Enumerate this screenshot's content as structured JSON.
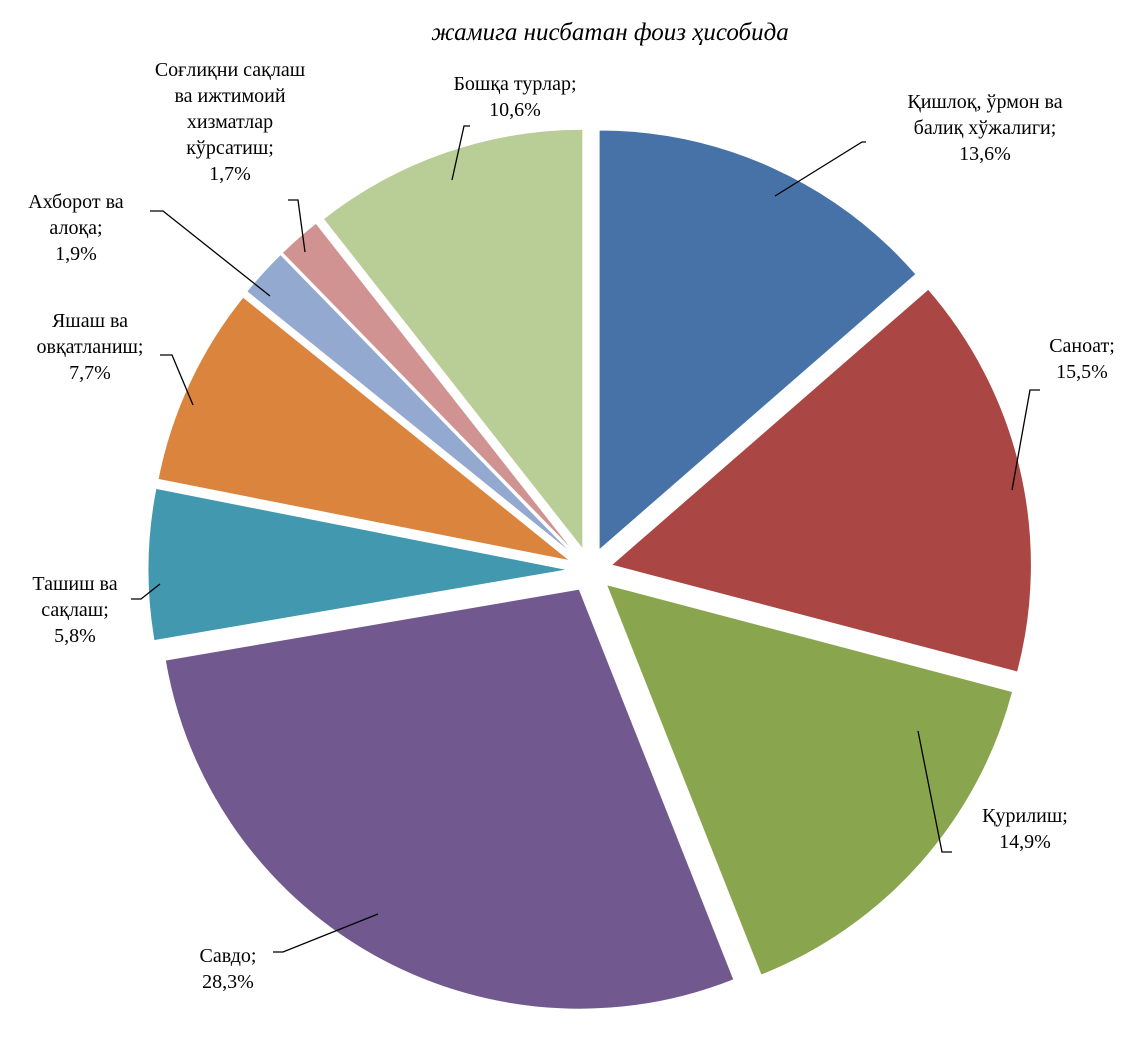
{
  "chart_data": {
    "type": "pie",
    "subtitle": "жамига нисбатан фоиз ҳисобида",
    "exploded": true,
    "start_angle": "12 o'clock",
    "direction": "clockwise",
    "slices": [
      {
        "label": "Қишлоқ, ўрмон ва балиқ хўжалиги",
        "lines": [
          "Қишлоқ, ўрмон ва",
          "балиқ хўжалиги;",
          "13,6%"
        ],
        "value": 13.6,
        "color": "#4672A8"
      },
      {
        "label": "Саноат",
        "lines": [
          "Саноат;",
          "15,5%"
        ],
        "value": 15.5,
        "color": "#AA4643"
      },
      {
        "label": "Қурилиш",
        "lines": [
          "Қурилиш;",
          "14,9%"
        ],
        "value": 14.9,
        "color": "#89A54E"
      },
      {
        "label": "Савдо",
        "lines": [
          "Савдо;",
          "28,3%"
        ],
        "value": 28.3,
        "color": "#71588F"
      },
      {
        "label": "Ташиш ва сақлаш",
        "lines": [
          "Ташиш ва",
          "сақлаш;",
          "5,8%"
        ],
        "value": 5.8,
        "color": "#4198AF"
      },
      {
        "label": "Яшаш ва овқатланиш",
        "lines": [
          "Яшаш ва",
          "овқатланиш;",
          "7,7%"
        ],
        "value": 7.7,
        "color": "#DB843D"
      },
      {
        "label": "Ахборот ва алоқа",
        "lines": [
          "Ахборот ва",
          "алоқа;",
          "1,9%"
        ],
        "value": 1.9,
        "color": "#93A9CF"
      },
      {
        "label": "Соғлиқни сақлаш ва ижтимоий хизматлар кўрсатиш",
        "lines": [
          "Соғлиқни сақлаш",
          "ва ижтимоий",
          "хизматлар",
          "кўрсатиш;",
          "1,7%"
        ],
        "value": 1.7,
        "color": "#D19392"
      },
      {
        "label": "Бошқа турлар",
        "lines": [
          "Бошқа турлар;",
          "10,6%"
        ],
        "value": 10.6,
        "color": "#B9CD96"
      }
    ]
  }
}
